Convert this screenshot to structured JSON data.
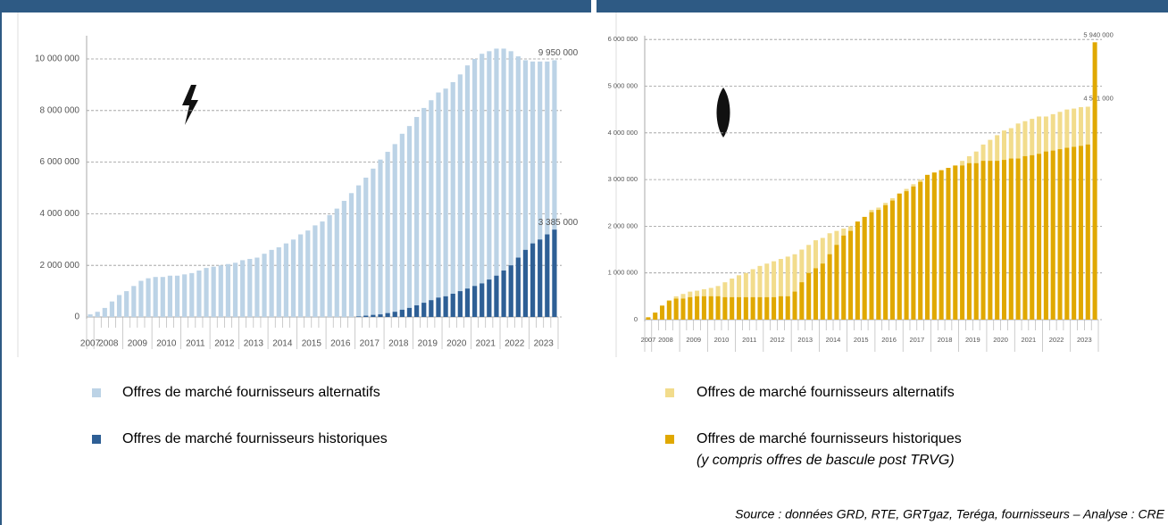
{
  "chart_data": [
    {
      "type": "bar",
      "categories": [
        "2007",
        null,
        "2008",
        null,
        null,
        null,
        "2009",
        null,
        null,
        null,
        "2010",
        null,
        null,
        null,
        "2011",
        null,
        null,
        null,
        "2012",
        null,
        null,
        null,
        "2013",
        null,
        null,
        null,
        "2014",
        null,
        null,
        null,
        "2015",
        null,
        null,
        null,
        "2016",
        null,
        null,
        null,
        "2017",
        null,
        null,
        null,
        "2018",
        null,
        null,
        null,
        "2019",
        null,
        null,
        null,
        "2020",
        null,
        null,
        null,
        "2021",
        null,
        null,
        null,
        "2022",
        null,
        null,
        null,
        "2023",
        null,
        null
      ],
      "series": [
        {
          "name": "Offres de marché fournisseurs alternatifs",
          "color": "#bcd3e6",
          "values": [
            100000,
            200000,
            350000,
            600000,
            850000,
            1000000,
            1200000,
            1400000,
            1500000,
            1550000,
            1550000,
            1600000,
            1600000,
            1650000,
            1700000,
            1800000,
            1900000,
            1950000,
            2000000,
            2050000,
            2100000,
            2200000,
            2250000,
            2300000,
            2450000,
            2600000,
            2700000,
            2850000,
            3000000,
            3200000,
            3350000,
            3550000,
            3700000,
            3950000,
            4200000,
            4500000,
            4800000,
            5100000,
            5400000,
            5750000,
            6100000,
            6400000,
            6700000,
            7100000,
            7400000,
            7750000,
            8100000,
            8400000,
            8700000,
            8850000,
            9100000,
            9400000,
            9750000,
            10000000,
            10200000,
            10300000,
            10400000,
            10400000,
            10300000,
            10100000,
            9950000,
            9900000,
            9900000,
            9900000,
            9950000
          ],
          "value_labels": [
            null,
            null,
            null,
            null,
            null,
            null,
            null,
            null,
            null,
            null,
            null,
            null,
            null,
            null,
            null,
            null,
            null,
            null,
            null,
            null,
            null,
            null,
            null,
            null,
            null,
            null,
            null,
            null,
            null,
            null,
            null,
            null,
            null,
            null,
            null,
            null,
            null,
            null,
            null,
            null,
            null,
            null,
            null,
            null,
            null,
            null,
            null,
            null,
            null,
            null,
            null,
            null,
            null,
            null,
            null,
            null,
            null,
            null,
            null,
            null,
            null,
            null,
            null,
            null,
            "9 950 000"
          ]
        },
        {
          "name": "Offres de marché fournisseurs historiques",
          "color": "#2e5f95",
          "values": [
            0,
            0,
            0,
            0,
            0,
            0,
            0,
            0,
            0,
            0,
            0,
            0,
            0,
            0,
            0,
            0,
            0,
            0,
            0,
            0,
            0,
            0,
            0,
            0,
            0,
            0,
            0,
            0,
            0,
            0,
            0,
            0,
            0,
            0,
            0,
            0,
            0,
            20000,
            50000,
            80000,
            100000,
            150000,
            200000,
            280000,
            350000,
            450000,
            550000,
            650000,
            750000,
            800000,
            900000,
            1000000,
            1100000,
            1200000,
            1300000,
            1450000,
            1600000,
            1800000,
            2000000,
            2300000,
            2600000,
            2850000,
            3000000,
            3200000,
            3385000
          ],
          "value_labels": [
            null,
            null,
            null,
            null,
            null,
            null,
            null,
            null,
            null,
            null,
            null,
            null,
            null,
            null,
            null,
            null,
            null,
            null,
            null,
            null,
            null,
            null,
            null,
            null,
            null,
            null,
            null,
            null,
            null,
            null,
            null,
            null,
            null,
            null,
            null,
            null,
            null,
            null,
            null,
            null,
            null,
            null,
            null,
            null,
            null,
            null,
            null,
            null,
            null,
            null,
            null,
            null,
            null,
            null,
            null,
            null,
            null,
            null,
            null,
            null,
            null,
            null,
            null,
            null,
            "3 385 000"
          ]
        }
      ],
      "ylim": [
        0,
        10900000
      ],
      "yticks": [
        0,
        {
          "value": 2000000,
          "label": "2 000 000"
        },
        {
          "value": 4000000,
          "label": "4 000 000"
        },
        {
          "value": 6000000,
          "label": "6 000 000"
        },
        {
          "value": 8000000,
          "label": "8 000 000"
        },
        {
          "value": 10000000,
          "label": "10 000 000"
        }
      ],
      "grid": true
    },
    {
      "type": "bar",
      "categories": [
        "2007",
        null,
        "2008",
        null,
        null,
        null,
        "2009",
        null,
        null,
        null,
        "2010",
        null,
        null,
        null,
        "2011",
        null,
        null,
        null,
        "2012",
        null,
        null,
        null,
        "2013",
        null,
        null,
        null,
        "2014",
        null,
        null,
        null,
        "2015",
        null,
        null,
        null,
        "2016",
        null,
        null,
        null,
        "2017",
        null,
        null,
        null,
        "2018",
        null,
        null,
        null,
        "2019",
        null,
        null,
        null,
        "2020",
        null,
        null,
        null,
        "2021",
        null,
        null,
        null,
        "2022",
        null,
        null,
        null,
        "2023",
        null,
        null
      ],
      "series": [
        {
          "name": "Offres de marché fournisseurs alternatifs",
          "color": "#f2dc8c",
          "values": [
            50000,
            150000,
            300000,
            420000,
            500000,
            550000,
            600000,
            620000,
            650000,
            680000,
            720000,
            800000,
            880000,
            950000,
            1000000,
            1080000,
            1150000,
            1200000,
            1250000,
            1300000,
            1350000,
            1400000,
            1500000,
            1600000,
            1700000,
            1750000,
            1850000,
            1900000,
            1950000,
            2000000,
            2100000,
            2200000,
            2350000,
            2400000,
            2500000,
            2600000,
            2700000,
            2800000,
            2900000,
            3000000,
            3100000,
            3150000,
            3200000,
            3250000,
            3300000,
            3400000,
            3500000,
            3600000,
            3750000,
            3850000,
            3950000,
            4050000,
            4100000,
            4200000,
            4250000,
            4300000,
            4350000,
            4350000,
            4400000,
            4450000,
            4500000,
            4520000,
            4550000,
            4560000,
            4581000
          ],
          "value_labels": [
            null,
            null,
            null,
            null,
            null,
            null,
            null,
            null,
            null,
            null,
            null,
            null,
            null,
            null,
            null,
            null,
            null,
            null,
            null,
            null,
            null,
            null,
            null,
            null,
            null,
            null,
            null,
            null,
            null,
            null,
            null,
            null,
            null,
            null,
            null,
            null,
            null,
            null,
            null,
            null,
            null,
            null,
            null,
            null,
            null,
            null,
            null,
            null,
            null,
            null,
            null,
            null,
            null,
            null,
            null,
            null,
            null,
            null,
            null,
            null,
            null,
            null,
            null,
            null,
            "4 581 000"
          ]
        },
        {
          "name": "Offres de marché fournisseurs historiques",
          "color": "#e0a800",
          "values": [
            50000,
            150000,
            300000,
            400000,
            450000,
            450000,
            480000,
            500000,
            500000,
            500000,
            500000,
            480000,
            480000,
            480000,
            480000,
            480000,
            480000,
            480000,
            480000,
            500000,
            500000,
            600000,
            800000,
            1000000,
            1100000,
            1200000,
            1400000,
            1600000,
            1800000,
            1900000,
            2100000,
            2200000,
            2300000,
            2350000,
            2450000,
            2550000,
            2700000,
            2750000,
            2850000,
            2950000,
            3100000,
            3150000,
            3200000,
            3250000,
            3300000,
            3300000,
            3350000,
            3350000,
            3400000,
            3400000,
            3400000,
            3420000,
            3450000,
            3450000,
            3500000,
            3520000,
            3550000,
            3600000,
            3620000,
            3650000,
            3680000,
            3700000,
            3720000,
            3750000,
            5940000
          ],
          "value_labels": [
            null,
            null,
            null,
            null,
            null,
            null,
            null,
            null,
            null,
            null,
            null,
            null,
            null,
            null,
            null,
            null,
            null,
            null,
            null,
            null,
            null,
            null,
            null,
            null,
            null,
            null,
            null,
            null,
            null,
            null,
            null,
            null,
            null,
            null,
            null,
            null,
            null,
            null,
            null,
            null,
            null,
            null,
            null,
            null,
            null,
            null,
            null,
            null,
            null,
            null,
            null,
            null,
            null,
            null,
            null,
            null,
            null,
            null,
            null,
            null,
            null,
            null,
            null,
            null,
            "5 940 000"
          ]
        }
      ],
      "legend_note": "(y compris offres de bascule post TRVG)",
      "ylim": [
        0,
        6080000
      ],
      "yticks": [
        0,
        {
          "value": 1000000,
          "label": "1 000 000"
        },
        {
          "value": 2000000,
          "label": "2 000 000"
        },
        {
          "value": 3000000,
          "label": "3 000 000"
        },
        {
          "value": 4000000,
          "label": "4 000 000"
        },
        {
          "value": 5000000,
          "label": "5 000 000"
        },
        {
          "value": 6000000,
          "label": "6 000 000"
        }
      ],
      "grid": true
    }
  ],
  "source": "Source : données GRD, RTE, GRTgaz, Teréga, fournisseurs – Analyse : CRE"
}
